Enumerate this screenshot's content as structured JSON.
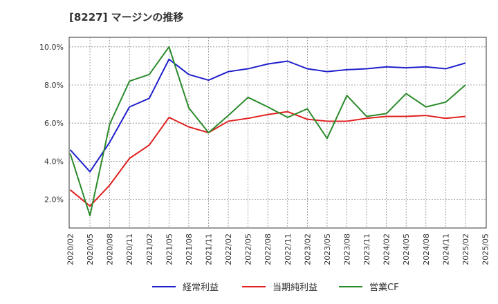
{
  "chart_data": {
    "type": "line",
    "title": "[8227]  マージンの推移",
    "xlabel": "",
    "ylabel": "",
    "ylim": [
      0.5,
      10.5
    ],
    "yticks": [
      2.0,
      4.0,
      6.0,
      8.0,
      10.0
    ],
    "ytick_labels": [
      "2.0%",
      "4.0%",
      "6.0%",
      "8.0%",
      "10.0%"
    ],
    "grid": true,
    "legend_position": "bottom",
    "x": [
      "2020/02",
      "2020/05",
      "2020/08",
      "2020/11",
      "2021/02",
      "2021/05",
      "2021/08",
      "2021/11",
      "2022/02",
      "2022/05",
      "2022/08",
      "2022/11",
      "2023/02",
      "2023/05",
      "2023/08",
      "2023/11",
      "2024/02",
      "2024/05",
      "2024/08",
      "2024/11",
      "2025/02",
      "2025/05"
    ],
    "series": [
      {
        "name": "経常利益",
        "color": "#1f1fcc",
        "values": [
          4.6,
          3.45,
          5.0,
          6.85,
          7.3,
          9.35,
          8.55,
          8.25,
          8.7,
          8.85,
          9.1,
          9.25,
          8.85,
          8.7,
          8.8,
          8.85,
          8.95,
          8.9,
          8.95,
          8.85,
          9.15,
          null
        ]
      },
      {
        "name": "当期純利益",
        "color": "#e02020",
        "values": [
          2.5,
          1.65,
          2.75,
          4.15,
          4.85,
          6.3,
          5.8,
          5.5,
          6.1,
          6.25,
          6.45,
          6.6,
          6.2,
          6.1,
          6.1,
          6.25,
          6.35,
          6.35,
          6.4,
          6.25,
          6.35,
          null
        ]
      },
      {
        "name": "営業CF",
        "color": "#2a8a2a",
        "values": [
          4.4,
          1.15,
          5.95,
          8.2,
          8.55,
          10.0,
          6.8,
          5.5,
          6.4,
          7.35,
          6.85,
          6.3,
          6.75,
          5.2,
          7.45,
          6.35,
          6.5,
          7.55,
          6.85,
          7.1,
          8.0,
          null
        ]
      }
    ]
  }
}
